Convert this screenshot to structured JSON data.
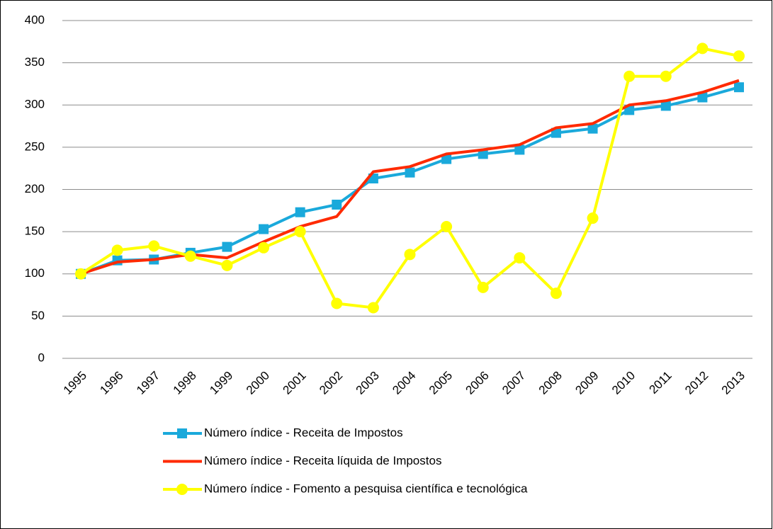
{
  "chart_data": {
    "type": "line",
    "categories": [
      "1995",
      "1996",
      "1997",
      "1998",
      "1999",
      "2000",
      "2001",
      "2002",
      "2003",
      "2004",
      "2005",
      "2006",
      "2007",
      "2008",
      "2009",
      "2010",
      "2011",
      "2012",
      "2013"
    ],
    "series": [
      {
        "name": "Número índice - Receita de Impostos",
        "color": "#1aa9db",
        "marker": "square",
        "values": [
          100,
          116,
          117,
          125,
          132,
          153,
          173,
          182,
          213,
          220,
          236,
          242,
          247,
          267,
          272,
          294,
          299,
          309,
          321
        ]
      },
      {
        "name": "Número índice - Receita líquida de Impostos",
        "color": "#ff2a00",
        "marker": "none",
        "values": [
          100,
          114,
          117,
          123,
          119,
          138,
          156,
          168,
          221,
          227,
          242,
          247,
          253,
          273,
          278,
          300,
          305,
          315,
          329
        ]
      },
      {
        "name": "Número índice - Fomento a pesquisa científica e tecnológica",
        "color": "#ffff00",
        "marker": "circle",
        "values": [
          100,
          128,
          133,
          121,
          110,
          131,
          150,
          65,
          60,
          123,
          156,
          84,
          119,
          77,
          166,
          334,
          334,
          367,
          358
        ]
      }
    ],
    "ylim": [
      0,
      400
    ],
    "yticks": [
      0,
      50,
      100,
      150,
      200,
      250,
      300,
      350,
      400
    ],
    "grid": true,
    "legend": "bottom"
  }
}
